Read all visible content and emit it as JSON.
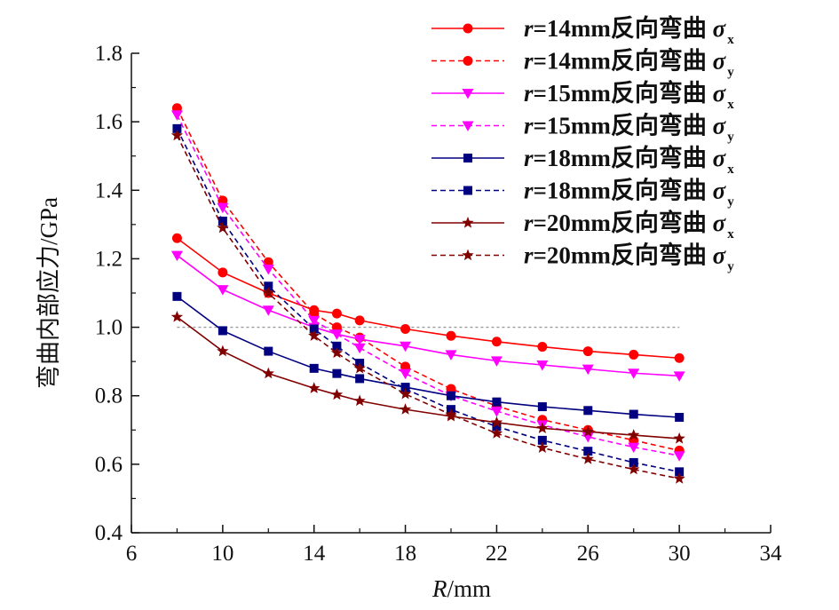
{
  "chart_data": {
    "type": "line",
    "xlabel_italic": "R",
    "xlabel_unit": "/mm",
    "ylabel": "弯曲内部应力/GPa",
    "xlim": [
      6,
      34
    ],
    "ylim": [
      0.4,
      1.8
    ],
    "xticks": [
      6,
      10,
      14,
      18,
      22,
      26,
      30,
      34
    ],
    "yticks": [
      0.4,
      0.6,
      0.8,
      1.0,
      1.2,
      1.4,
      1.6,
      1.8
    ],
    "ytick_labels": [
      "0.4",
      "0.6",
      "0.8",
      "1.0",
      "1.2",
      "1.4",
      "1.6",
      "1.8"
    ],
    "reference_line_y": 1.0,
    "legend_position": "top-right",
    "x": [
      8,
      10,
      12,
      14,
      15,
      16,
      18,
      20,
      22,
      24,
      26,
      28,
      30
    ],
    "series": [
      {
        "name_r": "r",
        "name_text": "=14mm反向弯曲 ",
        "name_sigma": "σ",
        "name_sub": "x",
        "color": "#ff0000",
        "marker": "circle",
        "dash": false,
        "values": [
          1.26,
          1.16,
          1.1,
          1.05,
          1.04,
          1.02,
          0.995,
          0.975,
          0.958,
          0.943,
          0.93,
          0.92,
          0.91
        ]
      },
      {
        "name_r": "r",
        "name_text": "=14mm反向弯曲 ",
        "name_sigma": "σ",
        "name_sub": "y",
        "color": "#ff0000",
        "marker": "circle",
        "dash": true,
        "values": [
          1.64,
          1.37,
          1.19,
          1.04,
          1.0,
          0.97,
          0.885,
          0.82,
          0.77,
          0.73,
          0.7,
          0.67,
          0.64
        ]
      },
      {
        "name_r": "r",
        "name_text": "=15mm反向弯曲 ",
        "name_sigma": "σ",
        "name_sub": "x",
        "color": "#ff00ff",
        "marker": "triangle-down",
        "dash": false,
        "values": [
          1.21,
          1.11,
          1.05,
          1.0,
          0.98,
          0.965,
          0.945,
          0.92,
          0.902,
          0.89,
          0.878,
          0.866,
          0.858
        ]
      },
      {
        "name_r": "r",
        "name_text": "=15mm反向弯曲 ",
        "name_sigma": "σ",
        "name_sub": "y",
        "color": "#ff00ff",
        "marker": "triangle-down",
        "dash": true,
        "values": [
          1.62,
          1.35,
          1.17,
          1.02,
          0.98,
          0.94,
          0.865,
          0.8,
          0.755,
          0.715,
          0.68,
          0.65,
          0.625
        ]
      },
      {
        "name_r": "r",
        "name_text": "=18mm反向弯曲 ",
        "name_sigma": "σ",
        "name_sub": "x",
        "color": "#000080",
        "marker": "square",
        "dash": false,
        "values": [
          1.09,
          0.99,
          0.93,
          0.88,
          0.865,
          0.85,
          0.825,
          0.8,
          0.782,
          0.768,
          0.757,
          0.746,
          0.737
        ]
      },
      {
        "name_r": "r",
        "name_text": "=18mm反向弯曲 ",
        "name_sigma": "σ",
        "name_sub": "y",
        "color": "#000080",
        "marker": "square",
        "dash": true,
        "values": [
          1.58,
          1.31,
          1.12,
          0.995,
          0.945,
          0.895,
          0.82,
          0.76,
          0.71,
          0.67,
          0.638,
          0.605,
          0.578
        ]
      },
      {
        "name_r": "r",
        "name_text": "=20mm反向弯曲 ",
        "name_sigma": "σ",
        "name_sub": "x",
        "color": "#800000",
        "marker": "star",
        "dash": false,
        "values": [
          1.03,
          0.93,
          0.865,
          0.822,
          0.803,
          0.785,
          0.76,
          0.74,
          0.722,
          0.705,
          0.695,
          0.685,
          0.675
        ]
      },
      {
        "name_r": "r",
        "name_text": "=20mm反向弯曲 ",
        "name_sigma": "σ",
        "name_sub": "y",
        "color": "#800000",
        "marker": "star",
        "dash": true,
        "values": [
          1.56,
          1.29,
          1.1,
          0.975,
          0.925,
          0.88,
          0.805,
          0.745,
          0.69,
          0.648,
          0.615,
          0.585,
          0.558
        ]
      }
    ]
  }
}
